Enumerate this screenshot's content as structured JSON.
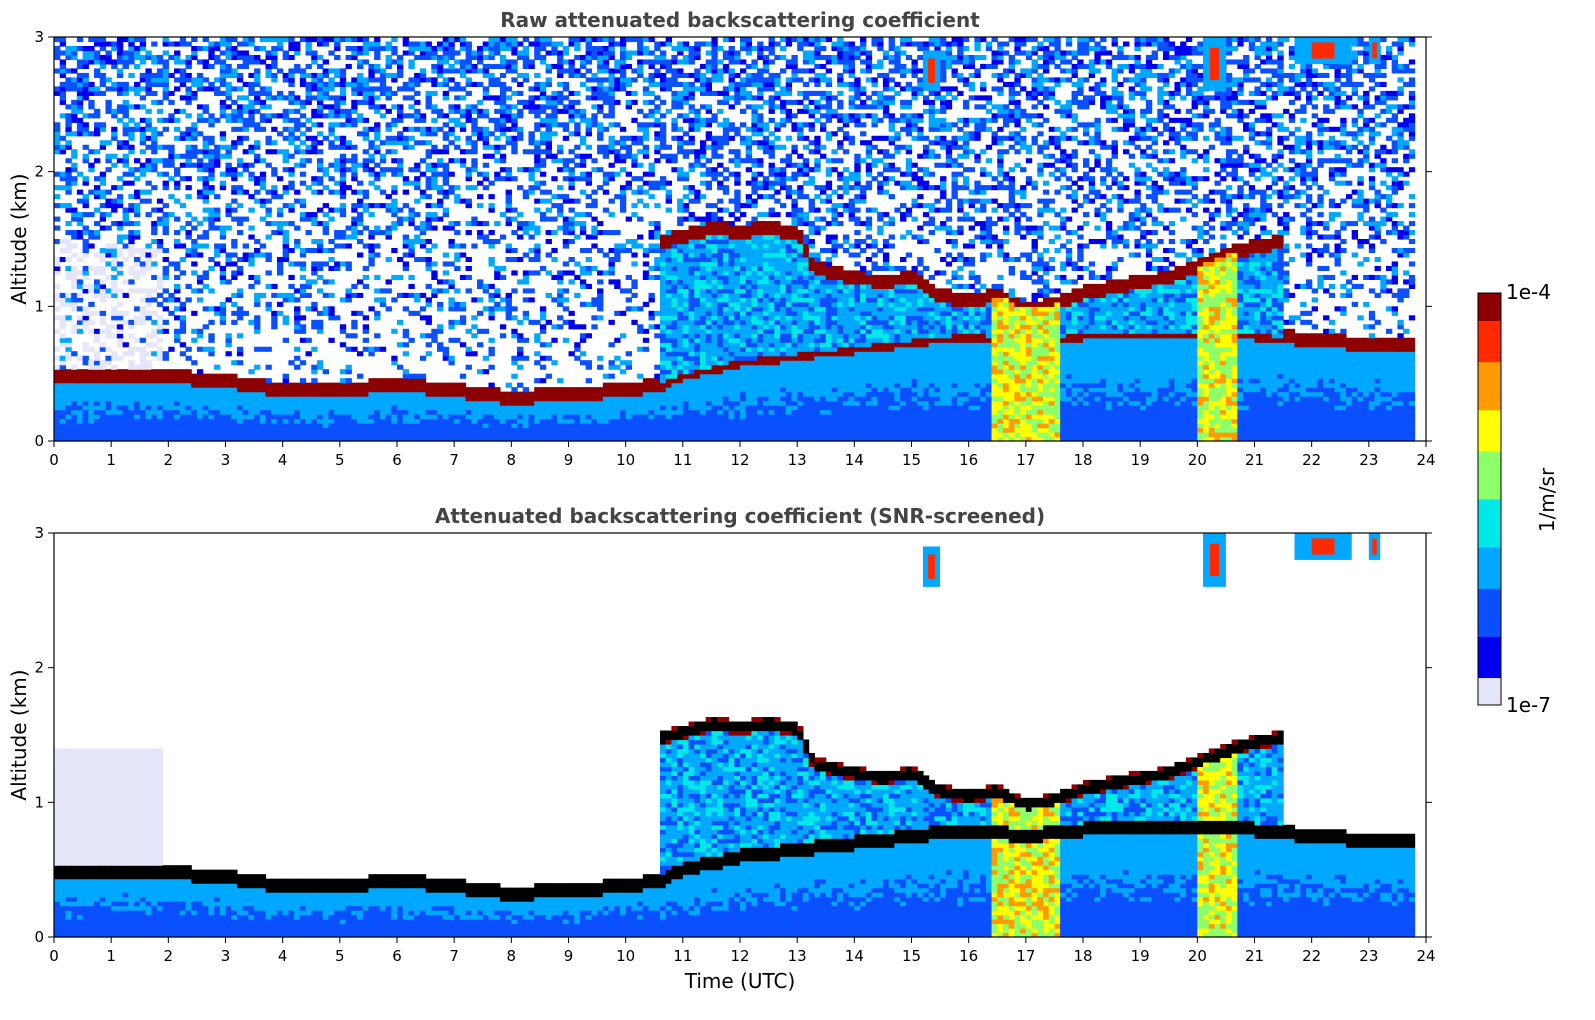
{
  "colors": {
    "colormap": [
      "#e6e6fb",
      "#0000f0",
      "#0a50ff",
      "#00a8ff",
      "#00e8e8",
      "#8cff6a",
      "#ffff00",
      "#ff9a00",
      "#ff2a00",
      "#8c0000"
    ],
    "background": "#ffffff",
    "title_text": "#444444"
  },
  "colorbar": {
    "max_label": "1e-4",
    "min_label": "1e-7",
    "unit_label": "1/m/sr",
    "scale": "log"
  },
  "chart_data": [
    {
      "type": "heatmap",
      "title": "Raw attenuated backscattering coefficient",
      "xlabel": "",
      "ylabel": "Altitude (km)",
      "xlim": [
        0,
        24
      ],
      "ylim": [
        0,
        3
      ],
      "xticks": [
        "0",
        "1",
        "2",
        "3",
        "4",
        "5",
        "6",
        "7",
        "8",
        "9",
        "10",
        "11",
        "12",
        "13",
        "14",
        "15",
        "16",
        "17",
        "18",
        "19",
        "20",
        "21",
        "22",
        "23",
        "24"
      ],
      "yticks": [
        "0",
        "1",
        "2",
        "3"
      ],
      "data_end_hour": 23.8,
      "aerosol_layer_top_km": {
        "x": [
          0,
          1.5,
          2,
          3,
          4,
          5,
          6,
          7,
          8,
          9,
          10,
          10.6,
          11,
          12,
          13,
          14,
          15,
          16,
          17,
          18,
          19,
          20,
          21,
          22,
          23,
          23.8
        ],
        "y": [
          0.5,
          0.5,
          0.48,
          0.45,
          0.38,
          0.38,
          0.42,
          0.38,
          0.32,
          0.35,
          0.38,
          0.42,
          0.5,
          0.6,
          0.65,
          0.7,
          0.75,
          0.8,
          0.75,
          0.8,
          0.8,
          0.8,
          0.8,
          0.75,
          0.72,
          0.72
        ]
      },
      "cloud_base_km": {
        "x": [
          10.6,
          11,
          11.5,
          12,
          12.5,
          13,
          13.3,
          14,
          14.5,
          15,
          15.5,
          16,
          16.5,
          17,
          17.5,
          18,
          19,
          19.5,
          20,
          20.5,
          21,
          21.5
        ],
        "y": [
          1.48,
          1.52,
          1.58,
          1.56,
          1.58,
          1.55,
          1.28,
          1.22,
          1.18,
          1.22,
          1.08,
          1.05,
          1.08,
          0.98,
          1.02,
          1.1,
          1.18,
          1.22,
          1.3,
          1.38,
          1.45,
          1.48
        ]
      },
      "precipitation_shafts_hours": [
        [
          16.4,
          17.6
        ],
        [
          20.0,
          20.7
        ]
      ],
      "high_cloud_patches": [
        {
          "x": [
            15.2,
            15.5
          ],
          "y": [
            2.6,
            2.9
          ]
        },
        {
          "x": [
            20.1,
            20.5
          ],
          "y": [
            2.6,
            3.0
          ]
        },
        {
          "x": [
            21.7,
            22.7
          ],
          "y": [
            2.8,
            3.0
          ]
        },
        {
          "x": [
            23.0,
            23.2
          ],
          "y": [
            2.8,
            3.0
          ]
        }
      ]
    },
    {
      "type": "heatmap",
      "title": "Attenuated backscattering coefficient (SNR-screened)",
      "xlabel": "Time (UTC)",
      "ylabel": "Altitude (km)",
      "xlim": [
        0,
        24
      ],
      "ylim": [
        0,
        3
      ],
      "xticks": [
        "0",
        "1",
        "2",
        "3",
        "4",
        "5",
        "6",
        "7",
        "8",
        "9",
        "10",
        "11",
        "12",
        "13",
        "14",
        "15",
        "16",
        "17",
        "18",
        "19",
        "20",
        "21",
        "22",
        "23",
        "24"
      ],
      "yticks": [
        "0",
        "1",
        "2",
        "3"
      ],
      "screened_noise_region": {
        "x": [
          0,
          1.95
        ],
        "y": [
          0.5,
          1.4
        ]
      },
      "data_end_hour": 23.8
    }
  ]
}
